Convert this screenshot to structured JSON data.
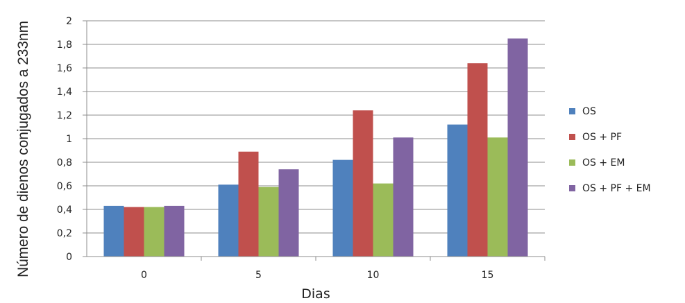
{
  "chart_data": {
    "type": "bar",
    "xlabel": "Dias",
    "ylabel": "Número de dienos conjugados a 233nm",
    "categories": [
      "0",
      "5",
      "10",
      "15"
    ],
    "ylim": [
      0,
      2
    ],
    "ytick_labels": [
      "0",
      "0,2",
      "0,4",
      "0,6",
      "0,8",
      "1",
      "1,2",
      "1,4",
      "1,6",
      "1,8",
      "2"
    ],
    "ytick_values": [
      0,
      0.2,
      0.4,
      0.6,
      0.8,
      1.0,
      1.2,
      1.4,
      1.6,
      1.8,
      2.0
    ],
    "grid": true,
    "legend_position": "right",
    "series": [
      {
        "name": "OS",
        "color": "#4F81BD",
        "values": [
          0.43,
          0.61,
          0.82,
          1.12
        ]
      },
      {
        "name": "OS + PF",
        "color": "#C0504D",
        "values": [
          0.42,
          0.89,
          1.24,
          1.64
        ]
      },
      {
        "name": "OS + EM",
        "color": "#9BBB59",
        "values": [
          0.42,
          0.59,
          0.62,
          1.01
        ]
      },
      {
        "name": "OS + PF + EM",
        "color": "#8064A2",
        "values": [
          0.43,
          0.74,
          1.01,
          1.85
        ]
      }
    ]
  }
}
